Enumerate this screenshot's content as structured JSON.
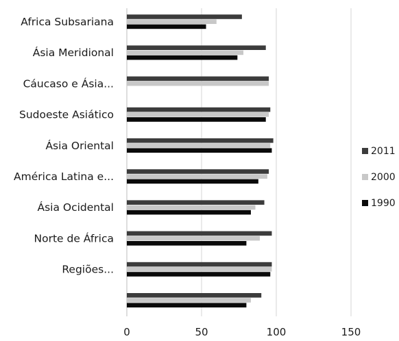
{
  "chart_data": {
    "type": "bar",
    "orientation": "horizontal",
    "categories": [
      "Africa Subsariana",
      "Ásia Meridional",
      "Cáucaso e Ásia...",
      "Sudoeste Asiático",
      "Ásia Oriental",
      "América Latina e...",
      "Ásia Ocidental",
      "Norte de África",
      "Regiões...",
      ""
    ],
    "series": [
      {
        "name": "2011",
        "color": "#3c3c3c",
        "values": [
          77,
          93,
          95,
          96,
          98,
          95,
          92,
          97,
          97,
          90
        ]
      },
      {
        "name": "2000",
        "color": "#c8c8c8",
        "values": [
          60,
          78,
          95,
          95,
          96,
          94,
          86,
          89,
          97,
          83
        ]
      },
      {
        "name": "1990",
        "color": "#0a0a0a",
        "values": [
          53,
          74,
          null,
          93,
          97,
          88,
          83,
          80,
          96,
          80
        ]
      }
    ],
    "xlim": [
      0,
      150
    ],
    "xticks": [
      "0",
      "50",
      "100",
      "150"
    ],
    "grid": "vertical",
    "legend_position": "right"
  }
}
